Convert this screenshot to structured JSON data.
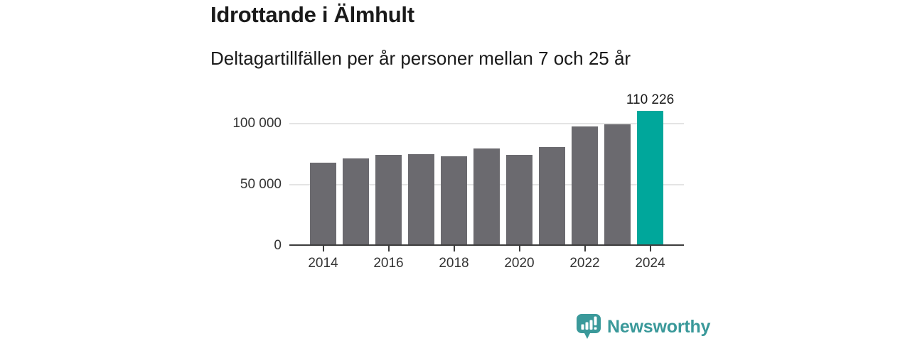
{
  "header": {
    "title": "Idrottande i Älmhult",
    "subtitle": "Deltagartillfällen per år personer mellan 7 och 25 år"
  },
  "chart_data": {
    "type": "bar",
    "title": "Idrottande i Älmhult",
    "subtitle": "Deltagartillfällen per år personer mellan 7 och 25 år",
    "xlabel": "",
    "ylabel": "",
    "categories": [
      "2014",
      "2015",
      "2016",
      "2017",
      "2018",
      "2019",
      "2020",
      "2021",
      "2022",
      "2023",
      "2024"
    ],
    "values": [
      67600,
      71500,
      74300,
      75000,
      73000,
      79300,
      74300,
      80700,
      97300,
      99300,
      110226
    ],
    "highlight_category": "2024",
    "value_label": {
      "category": "2024",
      "text": "110 226"
    },
    "ylim": [
      0,
      120000
    ],
    "yticks": [
      {
        "value": 0,
        "label": "0"
      },
      {
        "value": 50000,
        "label": "50 000"
      },
      {
        "value": 100000,
        "label": "100 000"
      }
    ],
    "xticks": [
      "2014",
      "2016",
      "2018",
      "2020",
      "2022",
      "2024"
    ],
    "grid": true,
    "legend": "none",
    "colors": {
      "bar": "#6b6a6f",
      "highlight": "#00a79b",
      "axis": "#3d3d3d",
      "gridline": "#e4e4e4",
      "label_text": "#333333"
    }
  },
  "footer": {
    "brand": "Newsworthy",
    "brand_color": "#3a999a",
    "logo_icon": "newsworthy-speech-bubble-bar-chart-icon"
  }
}
